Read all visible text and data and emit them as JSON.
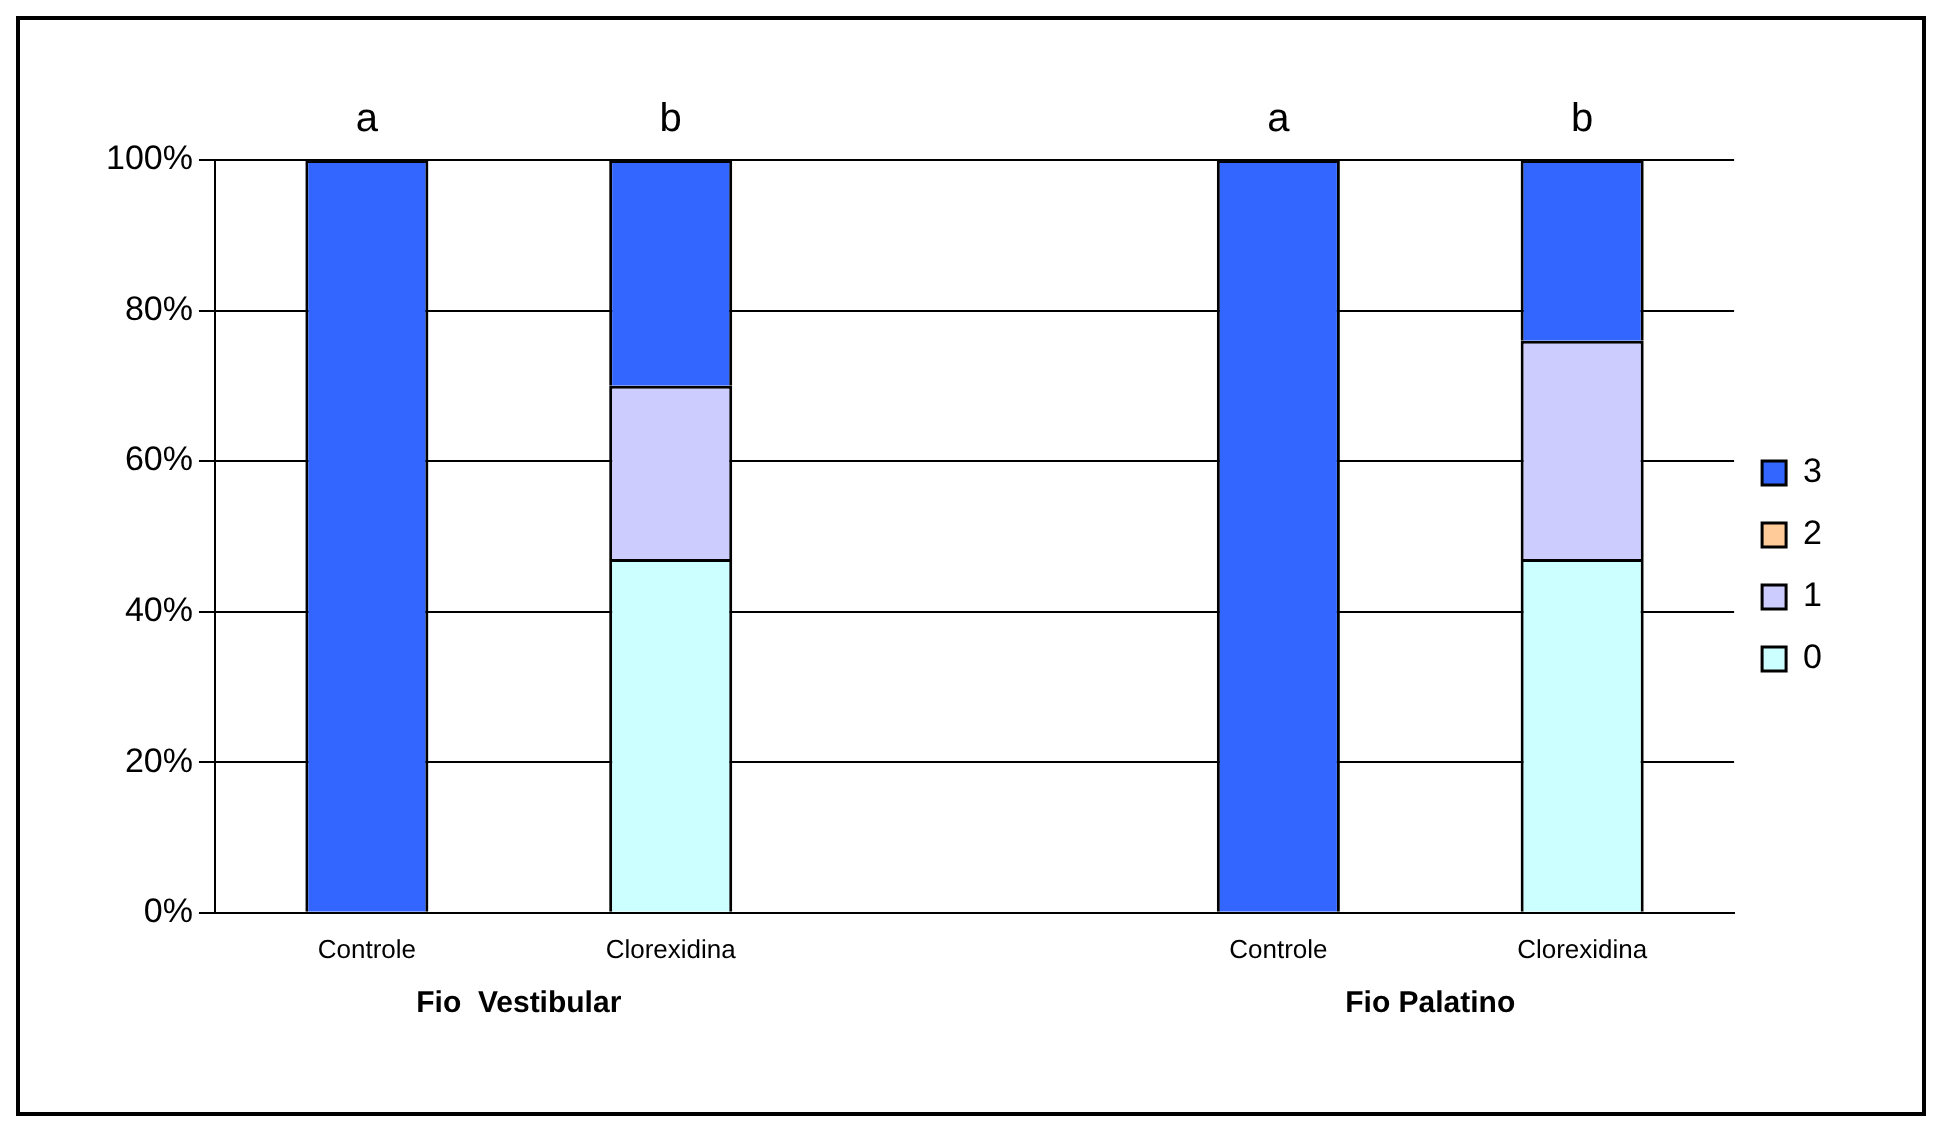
{
  "chart_data": {
    "type": "bar",
    "stacked": true,
    "categories": [
      "Controle",
      "Clorexidina",
      null,
      "Controle",
      "Clorexidina"
    ],
    "series": [
      {
        "name": "0",
        "color": "#ccffff",
        "values": [
          0,
          47,
          null,
          0,
          47
        ]
      },
      {
        "name": "1",
        "color": "#ccccff",
        "values": [
          0,
          23,
          null,
          0,
          29
        ]
      },
      {
        "name": "2",
        "color": "#ffcc99",
        "values": [
          0,
          0,
          null,
          0,
          0
        ]
      },
      {
        "name": "3",
        "color": "#3366ff",
        "values": [
          100,
          30,
          null,
          100,
          24
        ]
      }
    ],
    "ylim": [
      0,
      100
    ],
    "yticks": [
      {
        "value": 0,
        "label": "0%"
      },
      {
        "value": 20,
        "label": "20%"
      },
      {
        "value": 40,
        "label": "40%"
      },
      {
        "value": 60,
        "label": "60%"
      },
      {
        "value": 80,
        "label": "80%"
      },
      {
        "value": 100,
        "label": "100%"
      }
    ],
    "grid": "y",
    "legend": "right",
    "annotations": [
      "a",
      "b",
      "a",
      "b",
      "Fio  Vestibular",
      "Fio Palatino"
    ]
  }
}
